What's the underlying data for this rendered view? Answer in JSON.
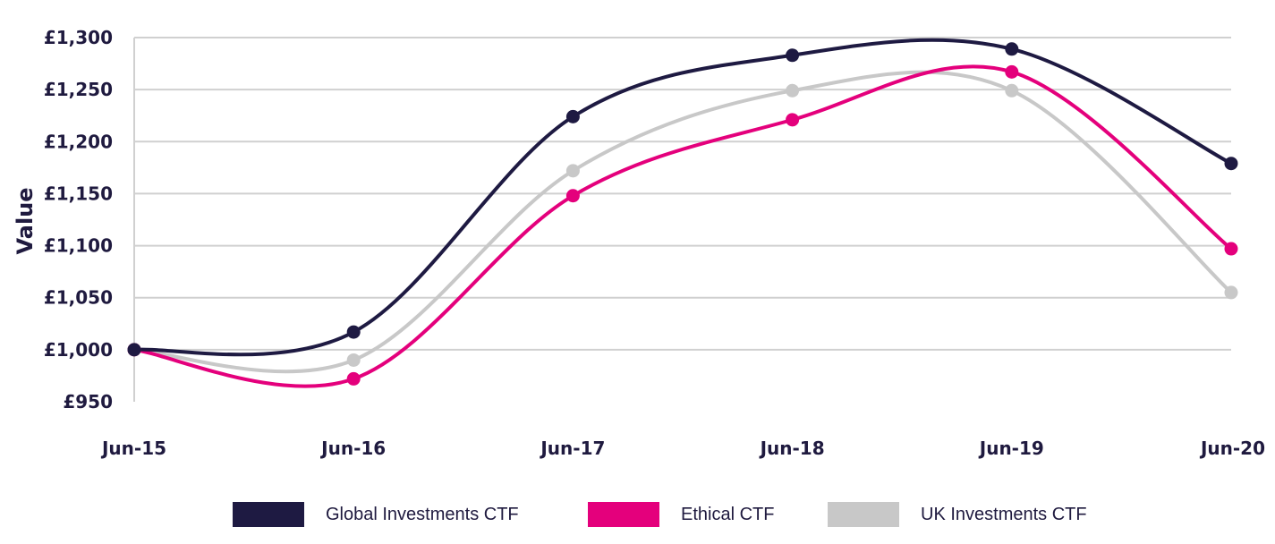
{
  "chart_data": {
    "type": "line",
    "categories": [
      "Jun-15",
      "Jun-16",
      "Jun-17",
      "Jun-18",
      "Jun-19",
      "Jun-20"
    ],
    "ylabel": "Value",
    "ylim": [
      950,
      1300
    ],
    "yticks": [
      950,
      1000,
      1050,
      1100,
      1150,
      1200,
      1250,
      1300
    ],
    "ytick_labels": [
      "£950",
      "£1,000",
      "£1,050",
      "£1,100",
      "£1,150",
      "£1,200",
      "£1,250",
      "£1,300"
    ],
    "grid": true,
    "legend_position": "bottom",
    "series": [
      {
        "name": "Global Investments CTF",
        "color": "#1e1a42",
        "values": [
          1000,
          1017,
          1224,
          1283,
          1289,
          1179
        ]
      },
      {
        "name": "Ethical CTF",
        "color": "#e4007c",
        "values": [
          1000,
          972,
          1148,
          1221,
          1267,
          1097
        ]
      },
      {
        "name": "UK Investments CTF",
        "color": "#c8c8c8",
        "values": [
          1000,
          990,
          1172,
          1249,
          1249,
          1055
        ]
      }
    ]
  }
}
